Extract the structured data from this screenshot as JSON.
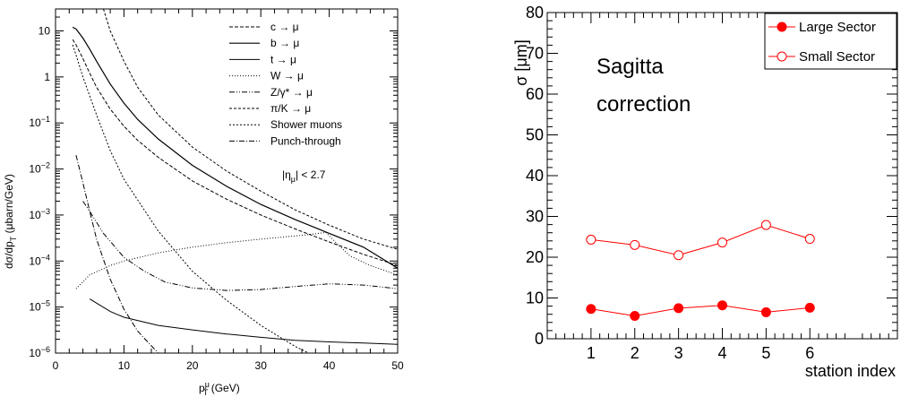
{
  "chart_data": [
    {
      "type": "line",
      "xlabel": "p",
      "xlabel_sup": "μ",
      "xlabel_sub": "T",
      "xlabel_unit": " (GeV)",
      "ylabel": "dσ/dp",
      "ylabel_sub": "T",
      "ylabel_unit": " (μbarn/GeV)",
      "yscale": "log",
      "xlim": [
        0,
        50
      ],
      "ylim": [
        1e-06,
        30
      ],
      "x_ticks": [
        "0",
        "10",
        "20",
        "30",
        "40",
        "50"
      ],
      "y_ticks": [
        {
          "base": "10",
          "exp": ""
        },
        {
          "base": "1",
          "exp": ""
        },
        {
          "base": "10",
          "exp": "−1"
        },
        {
          "base": "10",
          "exp": "−2"
        },
        {
          "base": "10",
          "exp": "−3"
        },
        {
          "base": "10",
          "exp": "−4"
        },
        {
          "base": "10",
          "exp": "−5"
        },
        {
          "base": "10",
          "exp": "−6"
        }
      ],
      "annotation": "|η",
      "annotation_sub": "μ",
      "annotation_tail": "| < 2.7",
      "legend_position": "top-right",
      "series": [
        {
          "name": "c → μ",
          "dash": "4,2",
          "width": 1,
          "points": [
            [
              2.5,
              6.5
            ],
            [
              3,
              5
            ],
            [
              4,
              2.5
            ],
            [
              5,
              1.2
            ],
            [
              6,
              0.6
            ],
            [
              8,
              0.2
            ],
            [
              10,
              0.085
            ],
            [
              12,
              0.042
            ],
            [
              15,
              0.018
            ],
            [
              20,
              0.0055
            ],
            [
              25,
              0.0022
            ],
            [
              30,
              0.001
            ],
            [
              35,
              0.0005
            ],
            [
              40,
              0.00026
            ],
            [
              45,
              0.00014
            ],
            [
              50,
              8e-05
            ]
          ]
        },
        {
          "name": "b → μ",
          "dash": "",
          "width": 1.2,
          "points": [
            [
              2.5,
              12
            ],
            [
              3,
              11
            ],
            [
              4,
              7
            ],
            [
              5,
              4
            ],
            [
              6,
              2.2
            ],
            [
              8,
              0.7
            ],
            [
              10,
              0.27
            ],
            [
              12,
              0.12
            ],
            [
              15,
              0.045
            ],
            [
              20,
              0.012
            ],
            [
              25,
              0.0042
            ],
            [
              30,
              0.0017
            ],
            [
              35,
              0.0008
            ],
            [
              40,
              0.0004
            ],
            [
              45,
              0.0002
            ],
            [
              50,
              7e-05
            ]
          ]
        },
        {
          "name": "t → μ",
          "dash": "",
          "width": 1,
          "points": [
            [
              5,
              1.5e-05
            ],
            [
              8,
              8e-06
            ],
            [
              10,
              6e-06
            ],
            [
              15,
              4e-06
            ],
            [
              20,
              3.2e-06
            ],
            [
              25,
              2.6e-06
            ],
            [
              30,
              2.2e-06
            ],
            [
              35,
              1.9e-06
            ],
            [
              40,
              1.75e-06
            ],
            [
              45,
              1.65e-06
            ],
            [
              50,
              1.55e-06
            ]
          ]
        },
        {
          "name": "W → μ",
          "dash": "1,2",
          "width": 1,
          "points": [
            [
              3,
              2.5e-05
            ],
            [
              5,
              5e-05
            ],
            [
              8,
              8e-05
            ],
            [
              10,
              0.0001
            ],
            [
              15,
              0.00015
            ],
            [
              20,
              0.0002
            ],
            [
              25,
              0.00025
            ],
            [
              30,
              0.0003
            ],
            [
              35,
              0.00035
            ],
            [
              38,
              0.00039
            ],
            [
              39.5,
              0.00042
            ],
            [
              41,
              0.00025
            ],
            [
              43,
              0.00013
            ],
            [
              46,
              8e-05
            ],
            [
              50,
              5e-05
            ]
          ]
        },
        {
          "name": "Z/γ* → μ",
          "dash": "6,2,1,2,1,2",
          "width": 1,
          "points": [
            [
              4,
              0.002
            ],
            [
              5,
              0.0012
            ],
            [
              7,
              0.0004
            ],
            [
              10,
              0.00012
            ],
            [
              13,
              6e-05
            ],
            [
              16,
              3.5e-05
            ],
            [
              20,
              2.6e-05
            ],
            [
              25,
              2.3e-05
            ],
            [
              30,
              2.4e-05
            ],
            [
              35,
              2.8e-05
            ],
            [
              40,
              3.2e-05
            ],
            [
              45,
              3e-05
            ],
            [
              50,
              2.5e-05
            ]
          ]
        },
        {
          "name": "π/K → μ",
          "dash": "3,2",
          "width": 1,
          "points": [
            [
              7,
              30
            ],
            [
              8,
              10
            ],
            [
              10,
              2.2
            ],
            [
              12,
              0.6
            ],
            [
              15,
              0.15
            ],
            [
              20,
              0.03
            ],
            [
              25,
              0.009
            ],
            [
              30,
              0.0033
            ],
            [
              35,
              0.0013
            ],
            [
              40,
              0.0006
            ],
            [
              45,
              0.0003
            ],
            [
              50,
              0.00018
            ]
          ]
        },
        {
          "name": "Shower muons",
          "dash": "2,2",
          "width": 1,
          "points": [
            [
              2.5,
              5
            ],
            [
              3,
              3
            ],
            [
              4,
              1
            ],
            [
              6,
              0.15
            ],
            [
              8,
              0.025
            ],
            [
              10,
              0.006
            ],
            [
              15,
              0.00045
            ],
            [
              20,
              6e-05
            ],
            [
              25,
              1.4e-05
            ],
            [
              30,
              4e-06
            ],
            [
              35,
              1.4e-06
            ],
            [
              37,
              1e-06
            ]
          ]
        },
        {
          "name": "Punch-through",
          "dash": "6,2,1,2",
          "width": 1,
          "points": [
            [
              3,
              0.02
            ],
            [
              4,
              0.005
            ],
            [
              5,
              0.0012
            ],
            [
              6,
              0.0003
            ],
            [
              8,
              4e-05
            ],
            [
              10,
              9e-06
            ],
            [
              12,
              3e-06
            ],
            [
              15,
              1e-06
            ]
          ]
        }
      ]
    },
    {
      "type": "line",
      "title_lines": [
        "Sagitta",
        "correction"
      ],
      "xlabel": "station index",
      "ylabel": "σ [μm]",
      "xlim": [
        0,
        8
      ],
      "ylim": [
        0,
        80
      ],
      "x_ticks": [
        1,
        2,
        3,
        4,
        5,
        6
      ],
      "y_ticks": [
        0,
        10,
        20,
        30,
        40,
        50,
        60,
        70,
        80
      ],
      "legend_position": "top-right",
      "series": [
        {
          "name": "Large Sector",
          "marker": "filled-circle",
          "color": "#ff0000",
          "x": [
            1,
            2,
            3,
            4,
            5,
            6
          ],
          "values": [
            7.3,
            5.6,
            7.5,
            8.2,
            6.5,
            7.6
          ]
        },
        {
          "name": "Small Sector",
          "marker": "open-circle",
          "color": "#ff0000",
          "x": [
            1,
            2,
            3,
            4,
            5,
            6
          ],
          "values": [
            24.3,
            23.0,
            20.5,
            23.6,
            27.9,
            24.5
          ]
        }
      ]
    }
  ]
}
